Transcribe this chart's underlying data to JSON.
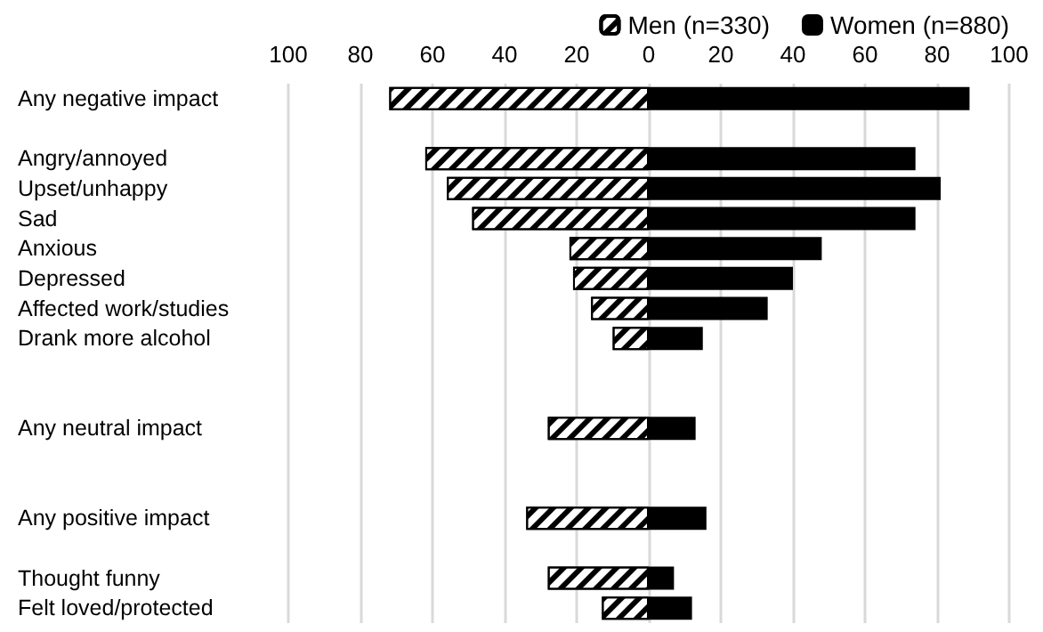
{
  "chart_data": {
    "type": "bar",
    "orientation": "horizontal",
    "categories": [
      "Any negative impact",
      null,
      "Angry/annoyed",
      "Upset/unhappy",
      "Sad",
      "Anxious",
      "Depressed",
      "Affected work/studies",
      "Drank more alcohol",
      null,
      null,
      "Any neutral impact",
      null,
      null,
      "Any positive impact",
      null,
      "Thought funny",
      "Felt loved/protected"
    ],
    "series": [
      {
        "name": "Men (n=330)",
        "color": "#ffffff",
        "values": [
          -72,
          null,
          -62,
          -56,
          -49,
          -22,
          -21,
          -16,
          -10,
          null,
          null,
          -28,
          null,
          null,
          -34,
          null,
          -28,
          -13
        ]
      },
      {
        "name": "Women (n=880)",
        "color": "#000000",
        "values": [
          89,
          null,
          74,
          81,
          74,
          48,
          40,
          33,
          15,
          null,
          null,
          13,
          null,
          null,
          16,
          null,
          7,
          12
        ]
      }
    ],
    "xlim": [
      -100,
      100
    ],
    "xticks": [
      {
        "value": -100,
        "label": "100"
      },
      {
        "value": -80,
        "label": "80"
      },
      {
        "value": -60,
        "label": "60"
      },
      {
        "value": -40,
        "label": "40"
      },
      {
        "value": -20,
        "label": "20"
      },
      0,
      20,
      40,
      60,
      80,
      100
    ],
    "stacked": true,
    "grid": "x",
    "legend": "top right"
  }
}
